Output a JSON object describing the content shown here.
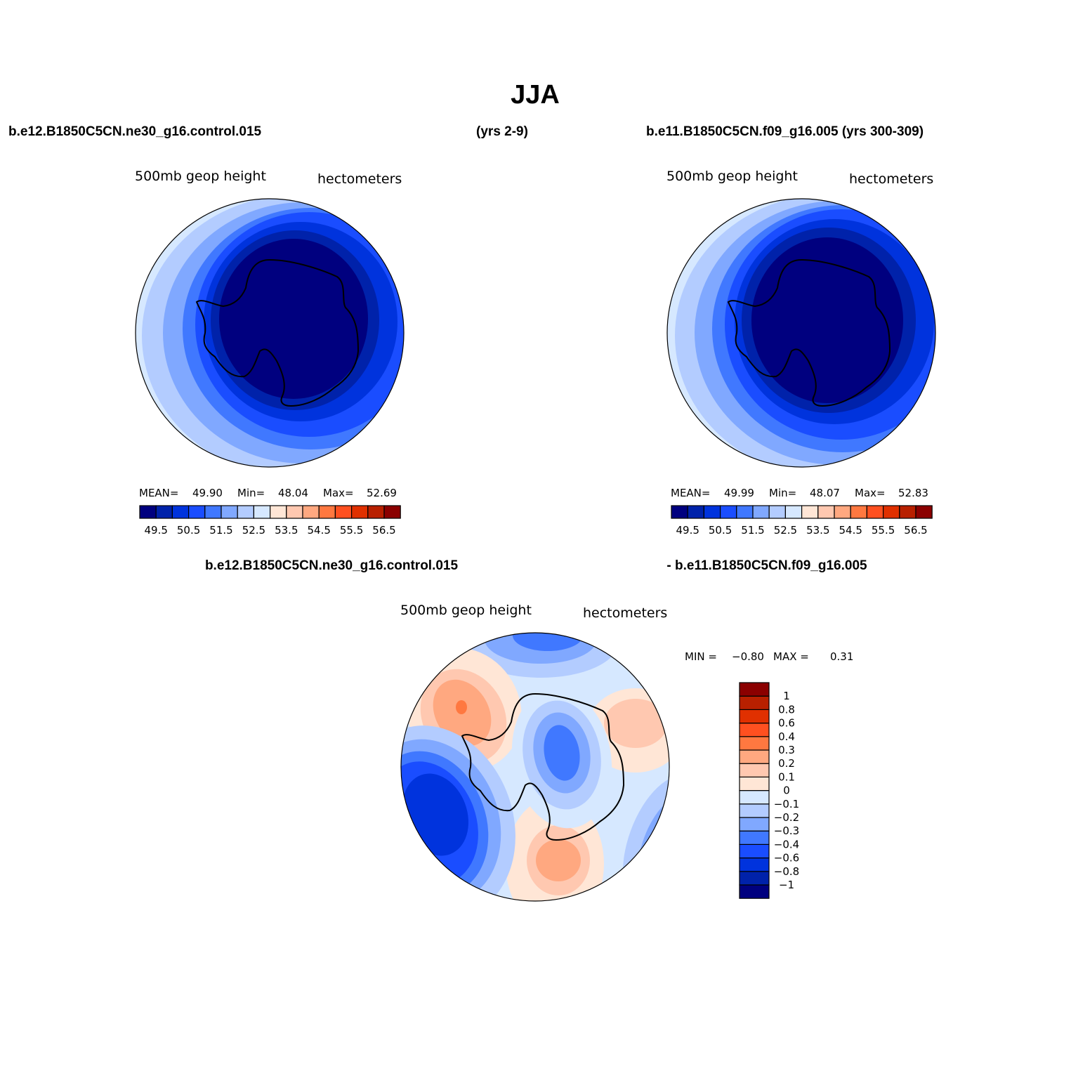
{
  "title": "JJA",
  "header": {
    "left_case": "b.e12.B1850C5CN.ne30_g16.control.015",
    "left_years": "(yrs 2-9)",
    "right_case": "b.e11.B1850C5CN.f09_g16.005 (yrs 300-309)",
    "diff_left": "b.e12.B1850C5CN.ne30_g16.control.015",
    "diff_right": "- b.e11.B1850C5CN.f09_g16.005"
  },
  "panels": [
    {
      "variable": "500mb  geop  height",
      "units": "hectometers",
      "stats": {
        "mean_label": "MEAN=",
        "mean": "49.90",
        "min_label": "Min=",
        "min": "48.04",
        "max_label": "Max=",
        "max": "52.69"
      }
    },
    {
      "variable": "500mb  geop  height",
      "units": "hectometers",
      "stats": {
        "mean_label": "MEAN=",
        "mean": "49.99",
        "min_label": "Min=",
        "min": "48.07",
        "max_label": "Max=",
        "max": "52.83"
      }
    },
    {
      "variable": "500mb  geop  height",
      "units": "hectometers",
      "stats": {
        "min_label": "MIN =",
        "min": "−0.80",
        "max_label": "MAX =",
        "max": "0.31"
      }
    }
  ],
  "colorbar_main": {
    "colors": [
      "#00007f",
      "#0022aa",
      "#0033dd",
      "#1a4dff",
      "#4078ff",
      "#80a8ff",
      "#b3ccff",
      "#d6e8ff",
      "#ffe6d6",
      "#ffc8b0",
      "#ffa880",
      "#ff7840",
      "#ff5020",
      "#e03000",
      "#b82000",
      "#8b0000"
    ],
    "labels": [
      "49.5",
      "50.5",
      "51.5",
      "52.5",
      "53.5",
      "54.5",
      "55.5",
      "56.5"
    ]
  },
  "colorbar_diff": {
    "colors": [
      "#00007f",
      "#0022aa",
      "#0033dd",
      "#1a4dff",
      "#4078ff",
      "#80a8ff",
      "#b3ccff",
      "#d6e8ff",
      "#ffe6d6",
      "#ffc8b0",
      "#ffa880",
      "#ff7840",
      "#ff5020",
      "#e03000",
      "#b82000",
      "#8b0000"
    ],
    "labels": [
      "−1",
      "−0.8",
      "−0.6",
      "−0.4",
      "−0.3",
      "−0.2",
      "−0.1",
      "0",
      "0.1",
      "0.2",
      "0.3",
      "0.4",
      "0.6",
      "0.8",
      "1"
    ]
  }
}
